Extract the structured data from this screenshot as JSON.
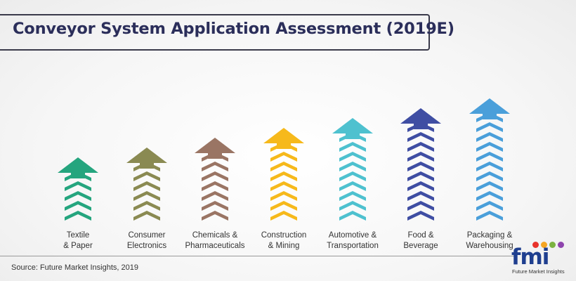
{
  "title": "Conveyor System Application Assessment (2019E)",
  "source": "Source: Future Market Insights, 2019",
  "logo": {
    "text": "fmi",
    "subtitle": "Future Market Insights",
    "dot_colors": [
      "#e8322b",
      "#f5a623",
      "#7cb342",
      "#8e44ad"
    ]
  },
  "chart_data": {
    "type": "bar",
    "title": "Conveyor System Application Assessment (2019E)",
    "xlabel": "",
    "ylabel": "",
    "categories": [
      [
        "Textile",
        "& Paper"
      ],
      [
        "Consumer",
        "Electronics"
      ],
      [
        "Chemicals &",
        "Pharmaceuticals"
      ],
      [
        "Construction",
        "& Mining"
      ],
      [
        "Automotive &",
        "Transportation"
      ],
      [
        "Food &",
        "Beverage"
      ],
      [
        "Packaging &",
        "Warehousing"
      ]
    ],
    "values": [
      5,
      6,
      7,
      8,
      9,
      10,
      11
    ],
    "colors": [
      "#25a57e",
      "#8a8a52",
      "#9a7564",
      "#f6b91b",
      "#4ec1cf",
      "#3f4ea3",
      "#4a9fda"
    ],
    "value_unit": "relative arrow height (chevron count)",
    "grid": false,
    "legend": "none"
  }
}
